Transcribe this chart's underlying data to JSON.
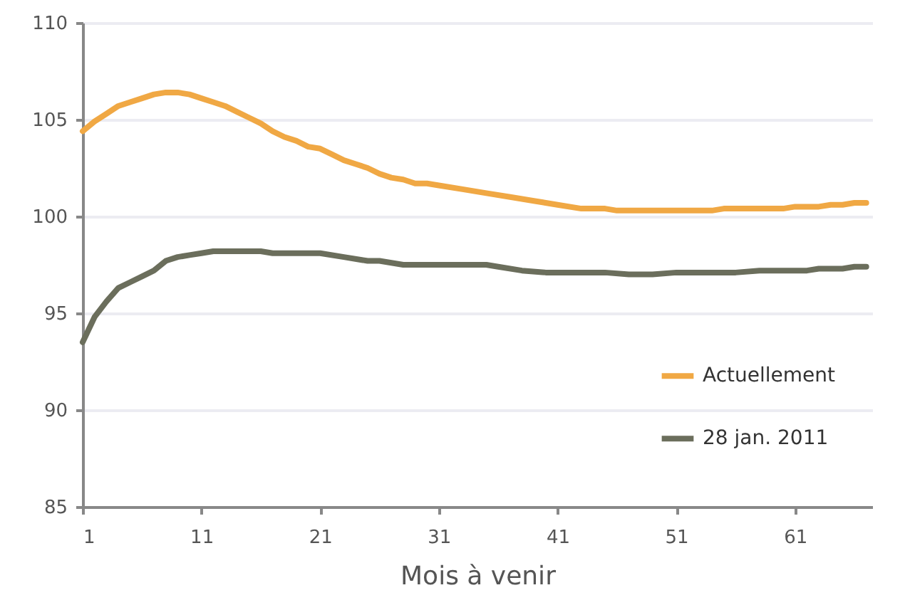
{
  "chart_data": {
    "type": "line",
    "xlabel": "Mois à venir",
    "xlim": [
      1,
      67.5
    ],
    "xticks": [
      1,
      11,
      21,
      31,
      41,
      51,
      61
    ],
    "ylim": [
      85,
      110
    ],
    "yticks": [
      85,
      90,
      95,
      100,
      105,
      110
    ],
    "grid": "y",
    "legend": "right",
    "marker": "none",
    "line_style": "solid",
    "series": [
      {
        "name": "Actuellement",
        "color": "#f0a844",
        "x": [
          1,
          2,
          3,
          4,
          5,
          6,
          7,
          8,
          9,
          10,
          11,
          12,
          13,
          14,
          15,
          16,
          17,
          18,
          19,
          20,
          21,
          22,
          23,
          24,
          25,
          26,
          27,
          28,
          29,
          30,
          31,
          33,
          35,
          37,
          39,
          41,
          43,
          45,
          46,
          50,
          54,
          55,
          60,
          61,
          63,
          64,
          65,
          66,
          67
        ],
        "values": [
          104.4,
          104.9,
          105.3,
          105.7,
          105.9,
          106.1,
          106.3,
          106.4,
          106.4,
          106.3,
          106.1,
          105.9,
          105.7,
          105.4,
          105.1,
          104.8,
          104.4,
          104.1,
          103.9,
          103.6,
          103.5,
          103.2,
          102.9,
          102.7,
          102.5,
          102.2,
          102.0,
          101.9,
          101.7,
          101.7,
          101.6,
          101.4,
          101.2,
          101.0,
          100.8,
          100.6,
          100.4,
          100.4,
          100.3,
          100.3,
          100.3,
          100.4,
          100.4,
          100.5,
          100.5,
          100.6,
          100.6,
          100.7,
          100.7
        ]
      },
      {
        "name": "28 jan. 2011",
        "color": "#6b6e5c",
        "x": [
          1,
          2,
          3,
          4,
          5,
          6,
          7,
          8,
          9,
          10,
          11,
          12,
          16,
          17,
          21,
          23,
          25,
          26,
          28,
          35,
          36,
          38,
          40,
          45,
          47,
          49,
          51,
          56,
          58,
          62,
          63,
          65,
          66,
          67
        ],
        "values": [
          93.5,
          94.8,
          95.6,
          96.3,
          96.6,
          96.9,
          97.2,
          97.7,
          97.9,
          98.0,
          98.1,
          98.2,
          98.2,
          98.1,
          98.1,
          97.9,
          97.7,
          97.7,
          97.5,
          97.5,
          97.4,
          97.2,
          97.1,
          97.1,
          97.0,
          97.0,
          97.1,
          97.1,
          97.2,
          97.2,
          97.3,
          97.3,
          97.4,
          97.4
        ]
      }
    ]
  }
}
